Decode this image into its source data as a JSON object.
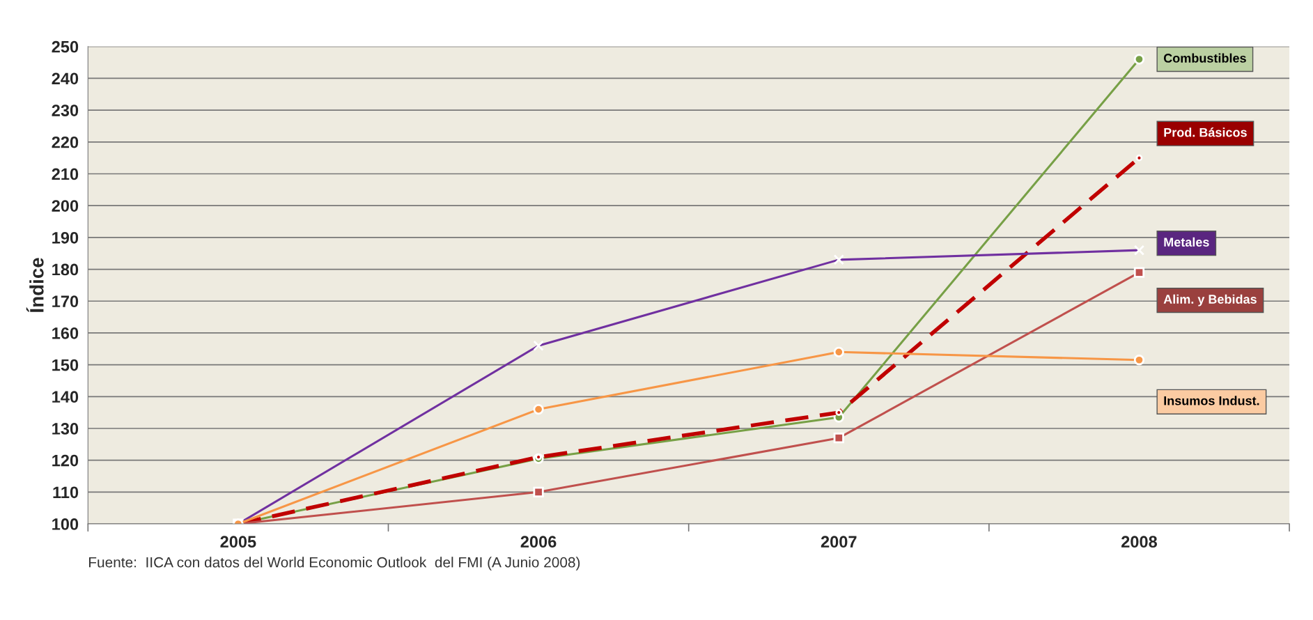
{
  "chart_data": {
    "type": "line",
    "ylabel": "Índice",
    "categories": [
      "2005",
      "2006",
      "2007",
      "2008"
    ],
    "series": [
      {
        "name": "Combustibles",
        "color": "#77a046",
        "marker": "circle",
        "line_style": "solid",
        "values": [
          100,
          120.5,
          133.5,
          246
        ]
      },
      {
        "name": "Prod. Básicos",
        "color": "#c00000",
        "marker": "circle",
        "line_style": "dashed",
        "values": [
          100,
          121,
          135,
          215
        ]
      },
      {
        "name": "Metales",
        "color": "#7030a0",
        "marker": "cross",
        "line_style": "solid",
        "values": [
          100,
          156,
          183,
          186
        ]
      },
      {
        "name": "Alim. y Bebidas",
        "color": "#c0504d",
        "marker": "square",
        "line_style": "solid",
        "values": [
          100,
          110,
          127,
          179
        ]
      },
      {
        "name": "Insumos Indust.",
        "color": "#f79646",
        "marker": "circle",
        "line_style": "solid",
        "values": [
          100,
          136,
          154,
          151.5
        ]
      }
    ],
    "ylim": [
      100,
      250
    ],
    "yticks": [
      100,
      110,
      120,
      130,
      140,
      150,
      160,
      170,
      180,
      190,
      200,
      210,
      220,
      230,
      240,
      250
    ],
    "grid": "y",
    "legend": false,
    "annotations": [
      "Fuente:  IICA con datos del World Economic Outlook  del FMI (A Junio 2008)"
    ]
  }
}
